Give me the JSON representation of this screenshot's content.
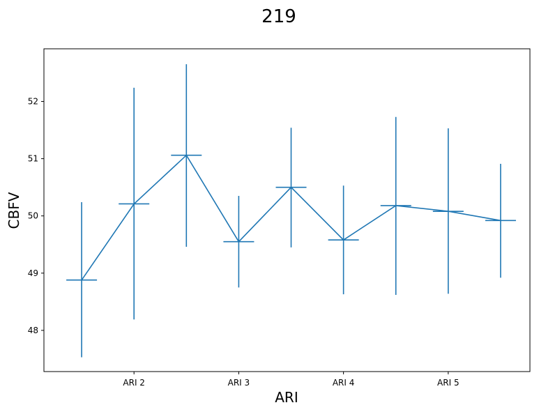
{
  "chart_data": {
    "type": "line",
    "title": "219",
    "xlabel": "ARI",
    "ylabel": "CBFV",
    "x_tick_labels": [
      "ARI 2",
      "ARI 3",
      "ARI 4",
      "ARI 5"
    ],
    "x_tick_positions": [
      2,
      4,
      6,
      8
    ],
    "xlim": [
      0.28,
      9.56
    ],
    "ylim": [
      47.28,
      52.92
    ],
    "y_ticks": [
      48,
      49,
      50,
      51,
      52
    ],
    "grid": false,
    "color": "#1f77b4",
    "series": [
      {
        "x": [
          1,
          2,
          3,
          4,
          5,
          6,
          7,
          8,
          9
        ],
        "y": [
          48.88,
          50.21,
          51.06,
          49.55,
          50.5,
          49.58,
          50.18,
          50.08,
          49.92
        ],
        "yerr_low": [
          47.53,
          48.19,
          49.46,
          48.75,
          49.45,
          48.63,
          48.62,
          48.64,
          48.92
        ],
        "yerr_high": [
          50.24,
          52.24,
          52.65,
          50.35,
          51.54,
          50.53,
          51.73,
          51.53,
          50.91
        ]
      }
    ]
  }
}
